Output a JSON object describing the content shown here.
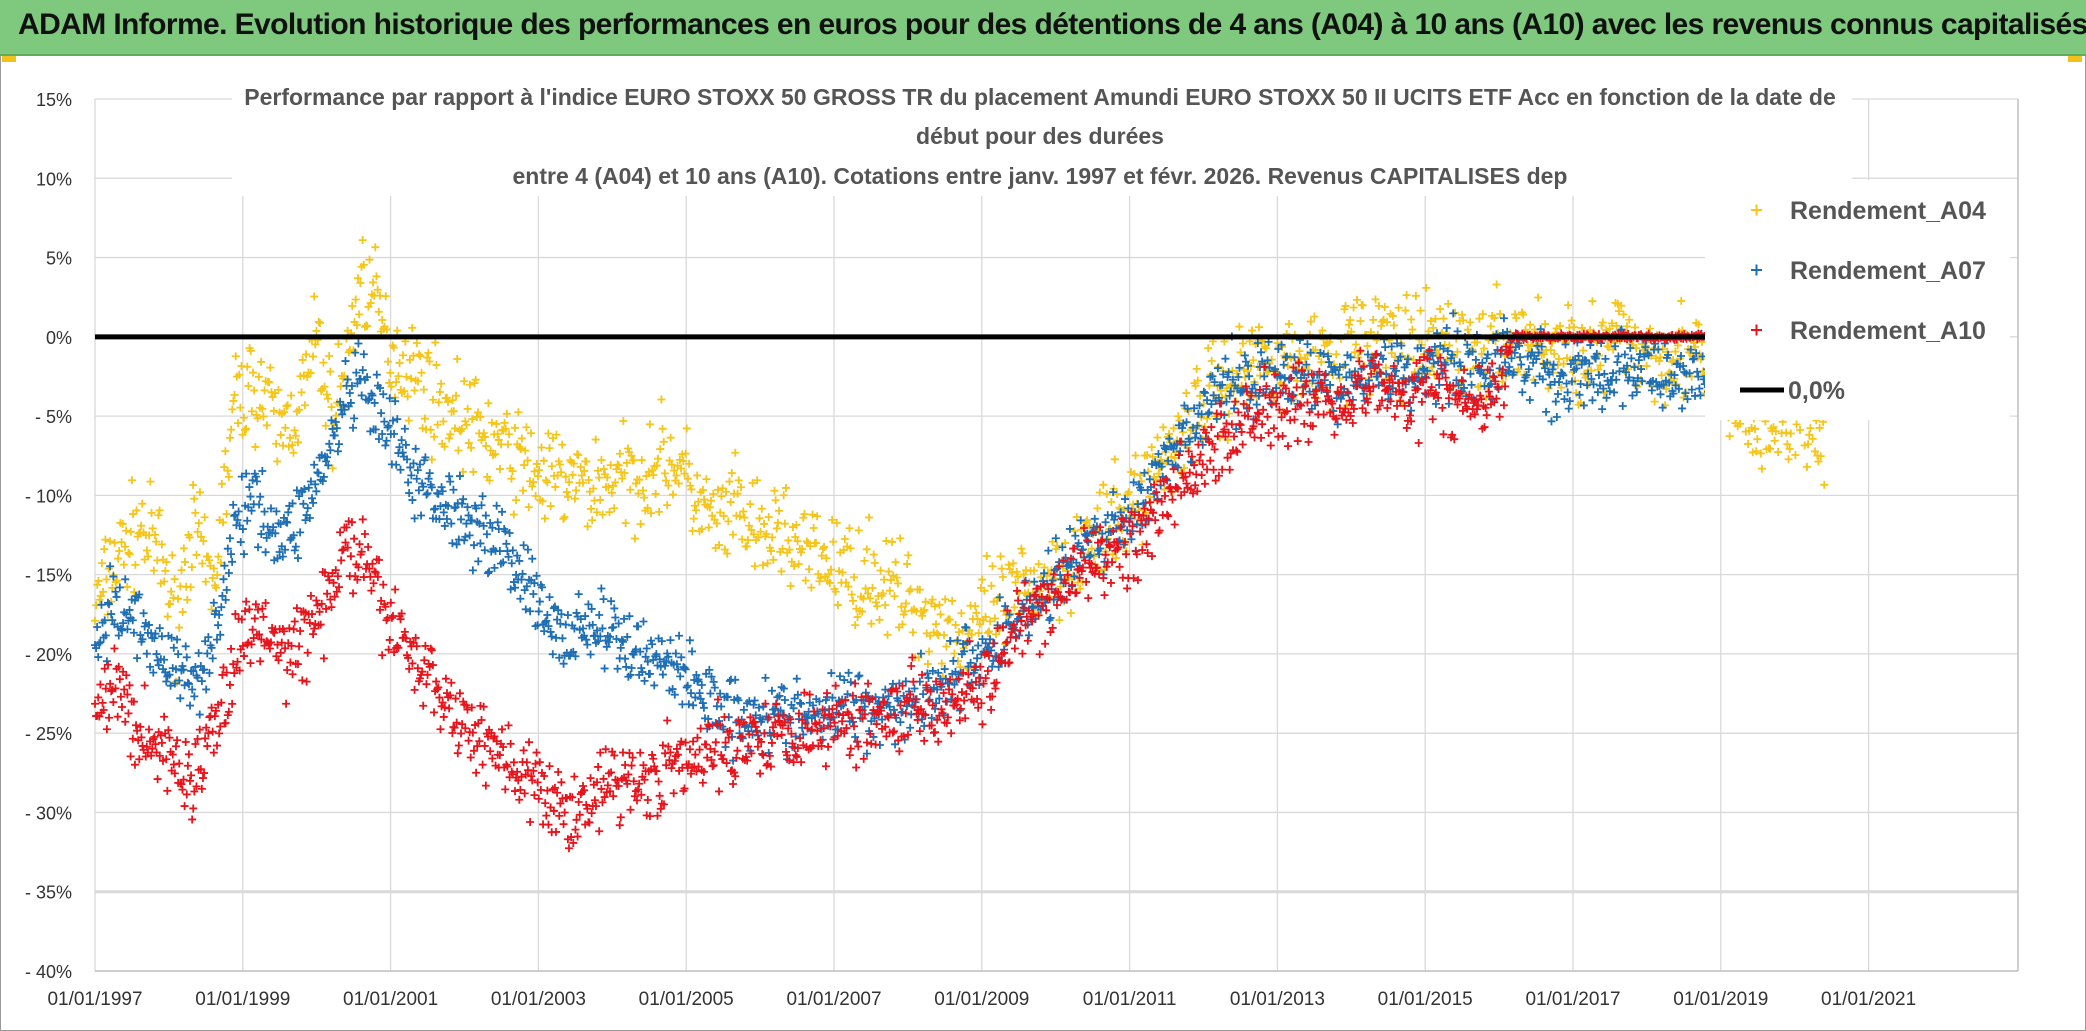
{
  "banner": {
    "title": "ADAM Informe. Evolution historique des performances en euros pour des détentions de 4 ans (A04) à 10 ans (A10) avec les revenus connus capitalisés"
  },
  "colors": {
    "banner_bg": "#7ec97e",
    "series_A04": "#f5c518",
    "series_A07": "#1f6fb5",
    "series_A10": "#e8141c",
    "zero_line": "#000000",
    "grid": "#d9d9d9"
  },
  "chart_data": {
    "type": "scatter",
    "title_lines": [
      "Performance par rapport à l'indice EURO STOXX 50 GROSS TR  du placement Amundi EURO STOXX 50 II UCITS ETF Acc en fonction de la date de",
      "début pour des durées",
      "entre 4 (A04) et 10 ans (A10). Cotations entre janv. 1997 et févr. 2026. Revenus CAPITALISES dep"
    ],
    "xlabel": "",
    "ylabel": "",
    "x_range": [
      1997.0,
      2023.0
    ],
    "ylim": [
      -40,
      15
    ],
    "y_ticks": [
      15,
      10,
      5,
      0,
      -5,
      -10,
      -15,
      -20,
      -25,
      -30,
      -35,
      -40
    ],
    "y_tick_labels": [
      "15%",
      "10%",
      "5%",
      "0%",
      "- 5%",
      "- 10%",
      "- 15%",
      "- 20%",
      "- 25%",
      "- 30%",
      "- 35%",
      "- 40%"
    ],
    "x_ticks": [
      1997,
      1999,
      2001,
      2003,
      2005,
      2007,
      2009,
      2011,
      2013,
      2015,
      2017,
      2019,
      2021
    ],
    "x_tick_labels": [
      "01/01/1997",
      "01/01/1999",
      "01/01/2001",
      "01/01/2003",
      "01/01/2005",
      "01/01/2007",
      "01/01/2009",
      "01/01/2011",
      "01/01/2013",
      "01/01/2015",
      "01/01/2017",
      "01/01/2019",
      "01/01/2021"
    ],
    "grid": true,
    "legend_position": "right",
    "series": [
      {
        "name": "Rendement_A04",
        "marker": "+",
        "points": [
          [
            1997.0,
            -17
          ],
          [
            1997.3,
            -14
          ],
          [
            1997.6,
            -12
          ],
          [
            1997.9,
            -14
          ],
          [
            1998.1,
            -18
          ],
          [
            1998.3,
            -12
          ],
          [
            1998.6,
            -16
          ],
          [
            1998.9,
            -4
          ],
          [
            1999.2,
            -3
          ],
          [
            1999.5,
            -6
          ],
          [
            1999.8,
            -4
          ],
          [
            2000.0,
            0
          ],
          [
            2000.2,
            -5
          ],
          [
            2000.4,
            -2
          ],
          [
            2000.6,
            4
          ],
          [
            2000.8,
            2
          ],
          [
            2001.0,
            -1
          ],
          [
            2001.3,
            -2
          ],
          [
            2001.6,
            -4
          ],
          [
            2001.9,
            -5
          ],
          [
            2002.2,
            -6
          ],
          [
            2002.5,
            -7
          ],
          [
            2002.8,
            -8
          ],
          [
            2003.1,
            -9
          ],
          [
            2003.4,
            -9
          ],
          [
            2003.7,
            -9.5
          ],
          [
            2004.0,
            -9
          ],
          [
            2004.3,
            -9
          ],
          [
            2004.6,
            -8
          ],
          [
            2004.9,
            -8
          ],
          [
            2005.1,
            -10
          ],
          [
            2005.4,
            -12
          ],
          [
            2005.7,
            -11
          ],
          [
            2006.0,
            -13
          ],
          [
            2006.3,
            -12
          ],
          [
            2006.6,
            -14
          ],
          [
            2006.9,
            -14
          ],
          [
            2007.2,
            -15
          ],
          [
            2007.5,
            -15
          ],
          [
            2007.8,
            -16
          ],
          [
            2008.1,
            -17
          ],
          [
            2008.4,
            -18
          ],
          [
            2008.7,
            -19
          ],
          [
            2009.0,
            -18
          ],
          [
            2009.3,
            -17
          ],
          [
            2009.6,
            -16
          ],
          [
            2009.9,
            -15
          ],
          [
            2010.2,
            -14
          ],
          [
            2010.5,
            -13
          ],
          [
            2010.8,
            -12
          ],
          [
            2011.1,
            -10
          ],
          [
            2011.4,
            -8
          ],
          [
            2011.7,
            -6
          ],
          [
            2012.0,
            -4
          ],
          [
            2012.3,
            -3
          ],
          [
            2012.6,
            -2
          ],
          [
            2012.9,
            -1
          ],
          [
            2013.2,
            -2
          ],
          [
            2013.5,
            -1
          ],
          [
            2013.8,
            -1
          ],
          [
            2014.1,
            -0.5
          ],
          [
            2014.4,
            0
          ],
          [
            2014.7,
            -1
          ],
          [
            2015.0,
            -1
          ],
          [
            2015.3,
            0
          ],
          [
            2015.6,
            -1
          ],
          [
            2015.9,
            -1
          ],
          [
            2016.2,
            0
          ],
          [
            2016.5,
            -0.5
          ],
          [
            2016.8,
            -1
          ],
          [
            2017.1,
            -1
          ],
          [
            2017.4,
            -1
          ],
          [
            2017.7,
            0
          ],
          [
            2018.0,
            -1
          ],
          [
            2018.3,
            -1
          ],
          [
            2018.6,
            -1
          ],
          [
            2018.9,
            -3
          ],
          [
            2019.3,
            -5
          ],
          [
            2019.6,
            -6
          ],
          [
            2020.0,
            -5
          ],
          [
            2020.4,
            -7
          ]
        ]
      },
      {
        "name": "Rendement_A07",
        "marker": "+",
        "points": [
          [
            1997.0,
            -19
          ],
          [
            1997.3,
            -17
          ],
          [
            1997.6,
            -18
          ],
          [
            1997.9,
            -20
          ],
          [
            1998.1,
            -21
          ],
          [
            1998.3,
            -22
          ],
          [
            1998.6,
            -19
          ],
          [
            1998.9,
            -12
          ],
          [
            1999.2,
            -10
          ],
          [
            1999.5,
            -13
          ],
          [
            1999.8,
            -11
          ],
          [
            2000.0,
            -9
          ],
          [
            2000.2,
            -7
          ],
          [
            2000.4,
            -4
          ],
          [
            2000.6,
            -3
          ],
          [
            2000.8,
            -5
          ],
          [
            2001.0,
            -6
          ],
          [
            2001.3,
            -9
          ],
          [
            2001.6,
            -10
          ],
          [
            2001.9,
            -11
          ],
          [
            2002.2,
            -12
          ],
          [
            2002.5,
            -13
          ],
          [
            2002.8,
            -15
          ],
          [
            2003.1,
            -18
          ],
          [
            2003.4,
            -19
          ],
          [
            2003.7,
            -18
          ],
          [
            2004.0,
            -19
          ],
          [
            2004.3,
            -20
          ],
          [
            2004.6,
            -20
          ],
          [
            2004.9,
            -21
          ],
          [
            2005.1,
            -22
          ],
          [
            2005.4,
            -23
          ],
          [
            2005.7,
            -24
          ],
          [
            2006.0,
            -23.5
          ],
          [
            2006.3,
            -24
          ],
          [
            2006.6,
            -24
          ],
          [
            2006.9,
            -24
          ],
          [
            2007.2,
            -23
          ],
          [
            2007.5,
            -23.5
          ],
          [
            2007.8,
            -23
          ],
          [
            2008.1,
            -23
          ],
          [
            2008.4,
            -22
          ],
          [
            2008.7,
            -21
          ],
          [
            2009.0,
            -20
          ],
          [
            2009.3,
            -19
          ],
          [
            2009.6,
            -17
          ],
          [
            2009.9,
            -16
          ],
          [
            2010.2,
            -14
          ],
          [
            2010.5,
            -13
          ],
          [
            2010.8,
            -12
          ],
          [
            2011.1,
            -11
          ],
          [
            2011.4,
            -9
          ],
          [
            2011.7,
            -7
          ],
          [
            2012.0,
            -5
          ],
          [
            2012.3,
            -3
          ],
          [
            2012.6,
            -3
          ],
          [
            2012.9,
            -2
          ],
          [
            2013.2,
            -3
          ],
          [
            2013.5,
            -2
          ],
          [
            2013.8,
            -3
          ],
          [
            2014.1,
            -2
          ],
          [
            2014.4,
            -2
          ],
          [
            2014.7,
            -2.5
          ],
          [
            2015.0,
            -2
          ],
          [
            2015.3,
            -1
          ],
          [
            2015.6,
            -2
          ],
          [
            2015.9,
            -2
          ],
          [
            2016.2,
            -1
          ],
          [
            2016.5,
            -2
          ],
          [
            2016.8,
            -3
          ],
          [
            2017.1,
            -2
          ],
          [
            2017.4,
            -3
          ],
          [
            2017.7,
            -2
          ],
          [
            2018.0,
            -2
          ],
          [
            2018.3,
            -3
          ],
          [
            2018.6,
            -2
          ],
          [
            2018.9,
            -2
          ]
        ]
      },
      {
        "name": "Rendement_A10",
        "marker": "+",
        "points": [
          [
            1997.0,
            -24
          ],
          [
            1997.3,
            -22
          ],
          [
            1997.6,
            -25
          ],
          [
            1997.9,
            -26
          ],
          [
            1998.1,
            -27
          ],
          [
            1998.3,
            -28
          ],
          [
            1998.6,
            -25
          ],
          [
            1998.9,
            -20
          ],
          [
            1999.2,
            -18
          ],
          [
            1999.5,
            -20
          ],
          [
            1999.8,
            -19
          ],
          [
            2000.0,
            -18
          ],
          [
            2000.2,
            -16
          ],
          [
            2000.4,
            -13
          ],
          [
            2000.6,
            -14
          ],
          [
            2000.8,
            -16
          ],
          [
            2001.0,
            -18
          ],
          [
            2001.3,
            -20
          ],
          [
            2001.6,
            -22
          ],
          [
            2001.9,
            -24
          ],
          [
            2002.2,
            -25
          ],
          [
            2002.5,
            -26
          ],
          [
            2002.8,
            -28
          ],
          [
            2003.1,
            -29
          ],
          [
            2003.4,
            -30
          ],
          [
            2003.7,
            -29
          ],
          [
            2004.0,
            -28
          ],
          [
            2004.3,
            -28
          ],
          [
            2004.6,
            -27.5
          ],
          [
            2004.9,
            -27
          ],
          [
            2005.1,
            -27
          ],
          [
            2005.4,
            -26
          ],
          [
            2005.7,
            -25.5
          ],
          [
            2006.0,
            -25
          ],
          [
            2006.3,
            -25
          ],
          [
            2006.6,
            -24.5
          ],
          [
            2006.9,
            -24.5
          ],
          [
            2007.2,
            -24
          ],
          [
            2007.5,
            -24
          ],
          [
            2007.8,
            -23.5
          ],
          [
            2008.1,
            -23
          ],
          [
            2008.4,
            -23
          ],
          [
            2008.7,
            -22.5
          ],
          [
            2009.0,
            -22
          ],
          [
            2009.3,
            -20
          ],
          [
            2009.6,
            -18
          ],
          [
            2009.9,
            -17
          ],
          [
            2010.2,
            -15
          ],
          [
            2010.5,
            -14.5
          ],
          [
            2010.8,
            -13.5
          ],
          [
            2011.1,
            -13
          ],
          [
            2011.4,
            -11
          ],
          [
            2011.7,
            -9
          ],
          [
            2012.0,
            -8
          ],
          [
            2012.3,
            -6
          ],
          [
            2012.6,
            -5
          ],
          [
            2012.9,
            -4
          ],
          [
            2013.2,
            -4
          ],
          [
            2013.5,
            -4
          ],
          [
            2013.8,
            -4
          ],
          [
            2014.1,
            -3
          ],
          [
            2014.4,
            -3
          ],
          [
            2014.7,
            -4
          ],
          [
            2015.0,
            -3
          ],
          [
            2015.3,
            -4
          ],
          [
            2015.6,
            -4
          ],
          [
            2015.9,
            -4
          ],
          [
            2016.2,
            0
          ],
          [
            2016.5,
            0
          ],
          [
            2016.8,
            0
          ],
          [
            2017.1,
            0
          ],
          [
            2017.4,
            0
          ],
          [
            2017.7,
            0
          ],
          [
            2018.0,
            0
          ],
          [
            2018.3,
            0
          ],
          [
            2018.6,
            0
          ],
          [
            2018.9,
            0
          ]
        ]
      },
      {
        "name": "0,0%",
        "type": "line",
        "points": [
          [
            1997.0,
            0
          ],
          [
            2018.9,
            0
          ]
        ]
      }
    ]
  }
}
